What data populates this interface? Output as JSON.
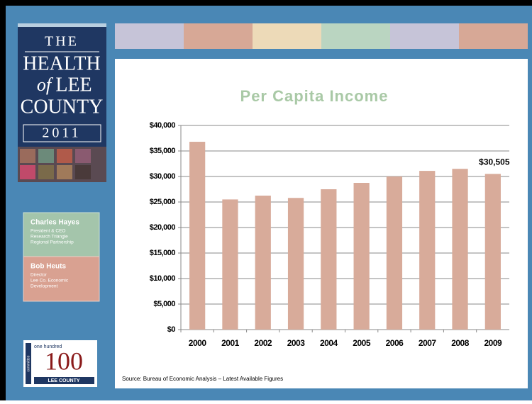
{
  "chart_data": {
    "type": "bar",
    "title": "Per Capita Income",
    "categories": [
      "2000",
      "2001",
      "2002",
      "2003",
      "2004",
      "2005",
      "2006",
      "2007",
      "2008",
      "2009"
    ],
    "values": [
      36800,
      25500,
      26250,
      25800,
      27500,
      28750,
      30000,
      31100,
      31500,
      30505
    ],
    "value_labels": [
      null,
      null,
      null,
      null,
      null,
      null,
      null,
      null,
      null,
      "$30,505"
    ],
    "color": "#d8ab9a",
    "ylim": [
      0,
      40000
    ],
    "yticks": [
      {
        "value": 0,
        "label": "$0"
      },
      {
        "value": 5000,
        "label": "$5,000"
      },
      {
        "value": 10000,
        "label": "$10,000"
      },
      {
        "value": 15000,
        "label": "$15,000"
      },
      {
        "value": 20000,
        "label": "$20,000"
      },
      {
        "value": 25000,
        "label": "$25,000"
      },
      {
        "value": 30000,
        "label": "$30,000"
      },
      {
        "value": 35000,
        "label": "$35,000"
      },
      {
        "value": 40000,
        "label": "$40,000"
      }
    ],
    "grid": true,
    "source": "Source: Bureau of Economic Analysis – Latest Available Figures"
  },
  "logo": {
    "line1": "THE",
    "line2": "HEALTH",
    "line3_italic": "of",
    "line3": "LEE",
    "line4": "COUNTY",
    "year": "2011"
  },
  "people": [
    {
      "name": "Charles Hayes",
      "lines": [
        "President & CEO",
        "Research Triangle",
        "Regional Partnership"
      ]
    },
    {
      "name": "Bob Heuts",
      "lines": [
        "Director",
        "Lee Co. Economic",
        "Development"
      ]
    }
  ],
  "committee": {
    "top": "one hundred",
    "number": "100",
    "bottom": "LEE COUNTY",
    "side": "committee"
  }
}
